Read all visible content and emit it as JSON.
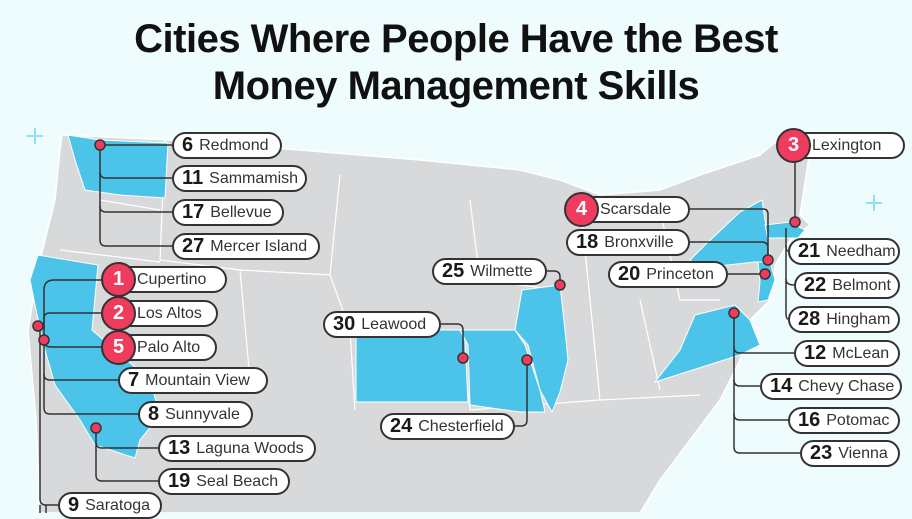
{
  "title": {
    "line1": "Cities Where People Have the Best",
    "line2": "Money Management Skills"
  },
  "colors": {
    "highlight_state": "#4cc3e8",
    "land": "#d8d9db",
    "marker": "#ef3b5d",
    "background": "#eefcfd"
  },
  "cities": [
    {
      "rank": "1",
      "city": "Cupertino"
    },
    {
      "rank": "2",
      "city": "Los Altos"
    },
    {
      "rank": "3",
      "city": "Lexington"
    },
    {
      "rank": "4",
      "city": "Scarsdale"
    },
    {
      "rank": "5",
      "city": "Palo Alto"
    },
    {
      "rank": "6",
      "city": "Redmond"
    },
    {
      "rank": "7",
      "city": "Mountain View"
    },
    {
      "rank": "8",
      "city": "Sunnyvale"
    },
    {
      "rank": "9",
      "city": "Saratoga"
    },
    {
      "rank": "11",
      "city": "Sammamish"
    },
    {
      "rank": "12",
      "city": "McLean"
    },
    {
      "rank": "13",
      "city": "Laguna Woods"
    },
    {
      "rank": "14",
      "city": "Chevy Chase"
    },
    {
      "rank": "16",
      "city": "Potomac"
    },
    {
      "rank": "17",
      "city": "Bellevue"
    },
    {
      "rank": "18",
      "city": "Bronxville"
    },
    {
      "rank": "19",
      "city": "Seal Beach"
    },
    {
      "rank": "20",
      "city": "Princeton"
    },
    {
      "rank": "21",
      "city": "Needham"
    },
    {
      "rank": "22",
      "city": "Belmont"
    },
    {
      "rank": "23",
      "city": "Vienna"
    },
    {
      "rank": "24",
      "city": "Chesterfield"
    },
    {
      "rank": "25",
      "city": "Wilmette"
    },
    {
      "rank": "27",
      "city": "Mercer Island"
    },
    {
      "rank": "28",
      "city": "Hingham"
    },
    {
      "rank": "30",
      "city": "Leawood"
    }
  ]
}
